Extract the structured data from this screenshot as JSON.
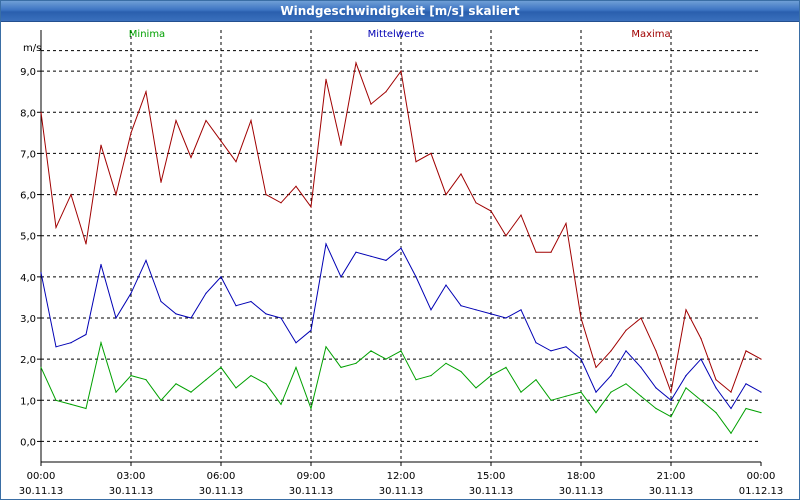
{
  "window": {
    "title": "Windgeschwindigkeit [m/s] skaliert"
  },
  "colors": {
    "min": "#00a000",
    "mean": "#0000b4",
    "max": "#a00000",
    "grid": "#000000",
    "title_bg": "#3d74c2"
  },
  "chart_data": {
    "type": "line",
    "title": "Windgeschwindigkeit [m/s] skaliert",
    "ylabel": "m/s",
    "ylim": [
      -0.5,
      10.0
    ],
    "yticks": [
      0,
      1,
      2,
      3,
      4,
      5,
      6,
      7,
      8,
      9
    ],
    "ytick_labels": [
      "0,0",
      "1,0",
      "2,0",
      "3,0",
      "4,0",
      "5,0",
      "6,0",
      "7,0",
      "8,0",
      "9,0"
    ],
    "xlim_hours": [
      0,
      24
    ],
    "xticks": [
      {
        "hour": 0,
        "time": "00:00",
        "date": "30.11.13"
      },
      {
        "hour": 3,
        "time": "03:00",
        "date": "30.11.13"
      },
      {
        "hour": 6,
        "time": "06:00",
        "date": "30.11.13"
      },
      {
        "hour": 9,
        "time": "09:00",
        "date": "30.11.13"
      },
      {
        "hour": 12,
        "time": "12:00",
        "date": "30.11.13"
      },
      {
        "hour": 15,
        "time": "15:00",
        "date": "30.11.13"
      },
      {
        "hour": 18,
        "time": "18:00",
        "date": "30.11.13"
      },
      {
        "hour": 21,
        "time": "21:00",
        "date": "30.11.13"
      },
      {
        "hour": 24,
        "time": "00:00",
        "date": "01.12.13"
      }
    ],
    "x_hours": [
      0,
      0.5,
      1,
      1.5,
      2,
      2.5,
      3,
      3.5,
      4,
      4.5,
      5,
      5.5,
      6,
      6.5,
      7,
      7.5,
      8,
      8.5,
      9,
      9.5,
      10,
      10.5,
      11,
      11.5,
      12,
      12.5,
      13,
      13.5,
      14,
      14.5,
      15,
      15.5,
      16,
      16.5,
      17,
      17.5,
      18,
      18.5,
      19,
      19.5,
      20,
      20.5,
      21,
      21.5,
      22,
      22.5,
      23,
      23.5,
      24
    ],
    "series": [
      {
        "name": "Minima",
        "color": "#00a000",
        "values": [
          1.8,
          1.0,
          0.9,
          0.8,
          2.4,
          1.2,
          1.6,
          1.5,
          1.0,
          1.4,
          1.2,
          1.5,
          1.8,
          1.3,
          1.6,
          1.4,
          0.9,
          1.8,
          0.8,
          2.3,
          1.8,
          1.9,
          2.2,
          2.0,
          2.2,
          1.5,
          1.6,
          1.9,
          1.7,
          1.3,
          1.6,
          1.8,
          1.2,
          1.5,
          1.0,
          1.1,
          1.2,
          0.7,
          1.2,
          1.4,
          1.1,
          0.8,
          0.6,
          1.3,
          1.0,
          0.7,
          0.2,
          0.8,
          0.7
        ]
      },
      {
        "name": "Mittelwerte",
        "color": "#0000b4",
        "values": [
          4.1,
          2.3,
          2.4,
          2.6,
          4.3,
          3.0,
          3.6,
          4.4,
          3.4,
          3.1,
          3.0,
          3.6,
          4.0,
          3.3,
          3.4,
          3.1,
          3.0,
          2.4,
          2.7,
          4.8,
          4.0,
          4.6,
          4.5,
          4.4,
          4.7,
          4.0,
          3.2,
          3.8,
          3.3,
          3.2,
          3.1,
          3.0,
          3.2,
          2.4,
          2.2,
          2.3,
          2.0,
          1.2,
          1.6,
          2.2,
          1.8,
          1.3,
          1.0,
          1.6,
          2.0,
          1.3,
          0.8,
          1.4,
          1.2
        ]
      },
      {
        "name": "Maxima",
        "color": "#a00000",
        "values": [
          8.0,
          5.2,
          6.0,
          4.8,
          7.2,
          6.0,
          7.5,
          8.5,
          6.3,
          7.8,
          6.9,
          7.8,
          7.3,
          6.8,
          7.8,
          6.0,
          5.8,
          6.2,
          5.7,
          8.8,
          7.2,
          9.2,
          8.2,
          8.5,
          9.0,
          6.8,
          7.0,
          6.0,
          6.5,
          5.8,
          5.6,
          5.0,
          5.5,
          4.6,
          4.6,
          5.3,
          3.0,
          1.8,
          2.2,
          2.7,
          3.0,
          2.2,
          1.2,
          3.2,
          2.5,
          1.5,
          1.2,
          2.2,
          2.0
        ]
      }
    ]
  }
}
